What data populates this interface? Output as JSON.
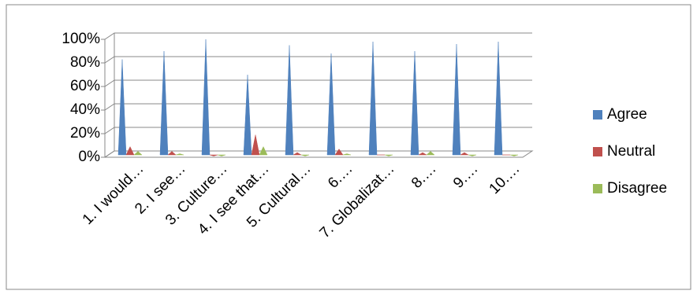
{
  "chart_data": {
    "type": "cone",
    "categories": [
      "1. I would…",
      "2. I see…",
      "3. Culture…",
      "4. I see that…",
      "5. Cultural…",
      "6.…",
      "7. Globalizat…",
      "8.…",
      "9.…",
      "10.…"
    ],
    "series": [
      {
        "name": "Agree",
        "color": "#4f81bd",
        "values": [
          83,
          90,
          100,
          70,
          95,
          88,
          98,
          90,
          96,
          98
        ]
      },
      {
        "name": "Neutral",
        "color": "#c0504d",
        "values": [
          9,
          5,
          1,
          19,
          4,
          7,
          2,
          4,
          4,
          2
        ]
      },
      {
        "name": "Disagree",
        "color": "#9bbb59",
        "values": [
          5,
          3,
          1,
          9,
          1,
          3,
          1,
          5,
          1,
          1
        ]
      }
    ],
    "ylim": [
      0,
      100
    ],
    "yticks": [
      {
        "value": 0,
        "label": "0%"
      },
      {
        "value": 20,
        "label": "20%"
      },
      {
        "value": 40,
        "label": "40%"
      },
      {
        "value": 60,
        "label": "60%"
      },
      {
        "value": 80,
        "label": "80%"
      },
      {
        "value": 100,
        "label": "100%"
      }
    ],
    "grid": true,
    "legend": "right"
  }
}
